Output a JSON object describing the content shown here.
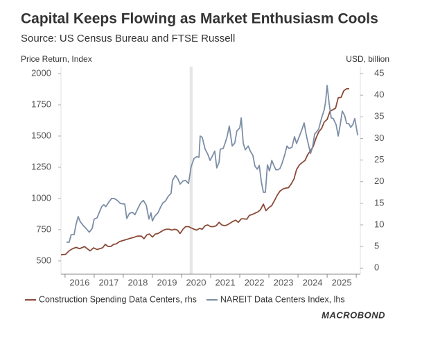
{
  "chart_data": {
    "type": "line",
    "title": "Capital Keeps Flowing as Market Enthusiasm Cools",
    "subtitle": "Source: US Census Bureau and FTSE Russell",
    "y_axis_label": "Price Return, Index",
    "y2_axis_label": "USD, billion",
    "logo": "MACROBOND",
    "categories": [
      "2016",
      "2017",
      "2018",
      "2019",
      "2020",
      "2021",
      "2022",
      "2023",
      "2024",
      "2025"
    ],
    "xlim": [
      2015.86,
      2026.14
    ],
    "xticks": [
      2016,
      2017,
      2018,
      2019,
      2020,
      2021,
      2022,
      2023,
      2024,
      2025,
      2026
    ],
    "ylim": [
      394,
      2000
    ],
    "yticks": [
      500,
      750,
      1000,
      1250,
      1500,
      1750,
      2000
    ],
    "y2lim": [
      -1.4,
      45
    ],
    "y2ticks": [
      0,
      5,
      10,
      15,
      20,
      25,
      30,
      35,
      40,
      45
    ],
    "grid": false,
    "legend": "bottom",
    "shaded_span": [
      2020.28,
      2020.38
    ],
    "shade_color": "#e6e6e6",
    "series": [
      {
        "name": "Construction Spending Data Centers, rhs",
        "color": "#8a4a38",
        "axis": "y2",
        "x": [
          2015.86,
          2016.02,
          2016.14,
          2016.26,
          2016.38,
          2016.5,
          2016.57,
          2016.67,
          2016.76,
          2016.86,
          2016.98,
          2017.1,
          2017.19,
          2017.29,
          2017.38,
          2017.48,
          2017.57,
          2017.67,
          2017.76,
          2017.86,
          2017.95,
          2018.1,
          2018.24,
          2018.36,
          2018.48,
          2018.62,
          2018.71,
          2018.81,
          2018.9,
          2019.0,
          2019.1,
          2019.19,
          2019.29,
          2019.38,
          2019.48,
          2019.57,
          2019.67,
          2019.76,
          2019.86,
          2019.95,
          2020.05,
          2020.14,
          2020.24,
          2020.33,
          2020.43,
          2020.52,
          2020.62,
          2020.71,
          2020.81,
          2020.9,
          2021.0,
          2021.1,
          2021.19,
          2021.29,
          2021.38,
          2021.48,
          2021.57,
          2021.67,
          2021.76,
          2021.86,
          2021.95,
          2022.05,
          2022.14,
          2022.24,
          2022.33,
          2022.43,
          2022.52,
          2022.62,
          2022.71,
          2022.81,
          2022.9,
          2023.0,
          2023.1,
          2023.19,
          2023.29,
          2023.38,
          2023.48,
          2023.57,
          2023.67,
          2023.76,
          2023.86,
          2023.95,
          2024.05,
          2024.14,
          2024.24,
          2024.33,
          2024.43,
          2024.52,
          2024.62,
          2024.71,
          2024.81,
          2024.9,
          2025.0,
          2025.1,
          2025.19,
          2025.29,
          2025.38,
          2025.48,
          2025.57,
          2025.67,
          2025.76
        ],
        "values": [
          3.1,
          3.2,
          4.0,
          4.5,
          4.8,
          4.5,
          4.7,
          5.0,
          4.5,
          4.0,
          4.7,
          4.3,
          4.5,
          4.7,
          5.5,
          5.0,
          5.0,
          5.5,
          5.6,
          6.1,
          6.3,
          6.6,
          6.9,
          7.1,
          7.4,
          7.4,
          6.8,
          7.7,
          7.9,
          7.2,
          7.9,
          8.0,
          8.4,
          8.8,
          9.0,
          9.0,
          8.8,
          9.0,
          8.8,
          8.0,
          9.0,
          9.6,
          9.6,
          9.3,
          9.0,
          8.8,
          9.2,
          9.0,
          9.8,
          10.0,
          9.6,
          9.6,
          9.8,
          10.6,
          10.0,
          9.8,
          10.0,
          10.4,
          10.8,
          11.1,
          10.6,
          11.4,
          11.4,
          11.3,
          12.2,
          12.4,
          12.7,
          13.0,
          13.5,
          14.8,
          13.3,
          14.0,
          14.5,
          15.6,
          16.9,
          17.8,
          18.3,
          18.5,
          18.6,
          19.4,
          20.6,
          22.8,
          23.9,
          24.4,
          24.9,
          26.2,
          27.2,
          28.1,
          30.1,
          31.5,
          32.3,
          33.8,
          34.4,
          36.3,
          36.6,
          37.0,
          39.4,
          39.5,
          41.0,
          41.5,
          41.5
        ]
      },
      {
        "name": "NAREIT Data Centers Index, lhs",
        "color": "#7c8ea6",
        "axis": "y",
        "x": [
          2016.05,
          2016.14,
          2016.21,
          2016.31,
          2016.38,
          2016.45,
          2016.52,
          2016.62,
          2016.74,
          2016.83,
          2016.93,
          2017.0,
          2017.1,
          2017.17,
          2017.26,
          2017.33,
          2017.4,
          2017.5,
          2017.6,
          2017.69,
          2017.79,
          2017.9,
          2018.05,
          2018.12,
          2018.21,
          2018.31,
          2018.4,
          2018.5,
          2018.6,
          2018.69,
          2018.79,
          2018.88,
          2018.95,
          2019.0,
          2019.07,
          2019.19,
          2019.29,
          2019.36,
          2019.45,
          2019.55,
          2019.64,
          2019.69,
          2019.79,
          2019.88,
          2019.95,
          2020.05,
          2020.14,
          2020.24,
          2020.33,
          2020.43,
          2020.52,
          2020.6,
          2020.64,
          2020.71,
          2020.81,
          2020.9,
          2020.98,
          2021.07,
          2021.14,
          2021.21,
          2021.29,
          2021.33,
          2021.43,
          2021.5,
          2021.57,
          2021.64,
          2021.74,
          2021.83,
          2021.9,
          2022.0,
          2022.05,
          2022.12,
          2022.19,
          2022.29,
          2022.36,
          2022.45,
          2022.52,
          2022.6,
          2022.67,
          2022.74,
          2022.81,
          2022.88,
          2022.95,
          2023.02,
          2023.1,
          2023.17,
          2023.24,
          2023.31,
          2023.38,
          2023.45,
          2023.55,
          2023.62,
          2023.69,
          2023.79,
          2023.88,
          2023.95,
          2024.05,
          2024.14,
          2024.21,
          2024.29,
          2024.36,
          2024.43,
          2024.5,
          2024.57,
          2024.64,
          2024.71,
          2024.81,
          2024.9,
          2024.95,
          2025.0,
          2025.07,
          2025.14,
          2025.21,
          2025.31,
          2025.38,
          2025.45,
          2025.52,
          2025.6,
          2025.67,
          2025.74,
          2025.81,
          2025.88,
          2025.95,
          2026.05
        ],
        "values": [
          650,
          650,
          710,
          710,
          795,
          855,
          815,
          785,
          755,
          730,
          760,
          835,
          845,
          885,
          935,
          950,
          935,
          970,
          1000,
          1000,
          985,
          960,
          955,
          840,
          880,
          890,
          870,
          920,
          965,
          985,
          945,
          835,
          885,
          820,
          855,
          885,
          935,
          965,
          980,
          1020,
          1040,
          1145,
          1185,
          1155,
          1115,
          1140,
          1145,
          1120,
          1255,
          1320,
          1335,
          1330,
          1500,
          1490,
          1395,
          1355,
          1305,
          1345,
          1380,
          1245,
          1290,
          1395,
          1400,
          1445,
          1500,
          1580,
          1420,
          1445,
          1540,
          1565,
          1645,
          1440,
          1390,
          1420,
          1380,
          1345,
          1260,
          1235,
          1265,
          1135,
          1050,
          1050,
          1270,
          1220,
          1305,
          1265,
          1230,
          1230,
          1240,
          1280,
          1355,
          1420,
          1400,
          1410,
          1495,
          1440,
          1500,
          1555,
          1605,
          1500,
          1430,
          1360,
          1410,
          1515,
          1535,
          1555,
          1645,
          1710,
          1780,
          1905,
          1760,
          1645,
          1640,
          1590,
          1500,
          1590,
          1700,
          1665,
          1600,
          1600,
          1570,
          1590,
          1640,
          1505
        ]
      }
    ]
  }
}
